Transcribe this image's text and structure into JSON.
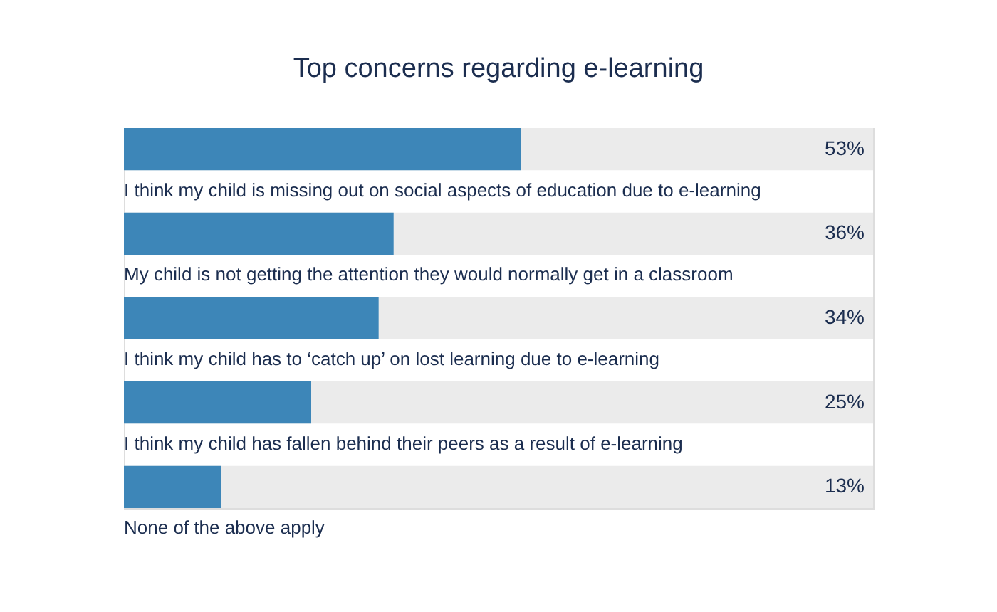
{
  "chart_data": {
    "type": "bar",
    "orientation": "horizontal",
    "title": "Top concerns regarding e-learning",
    "categories": [
      "I think my child is missing out on social aspects of education due to e-learning",
      "My child is not getting the attention they would normally get in a classroom",
      "I think my child has to ‘catch up’ on lost learning due to e-learning",
      "I think my child has fallen behind their peers as a result of e-learning",
      "None of the above apply"
    ],
    "values": [
      53,
      36,
      34,
      25,
      13
    ],
    "value_labels": [
      "53%",
      "36%",
      "34%",
      "25%",
      "13%"
    ],
    "color": "#3d86b8",
    "xlim": [
      0,
      100
    ],
    "tick_labels": false
  }
}
